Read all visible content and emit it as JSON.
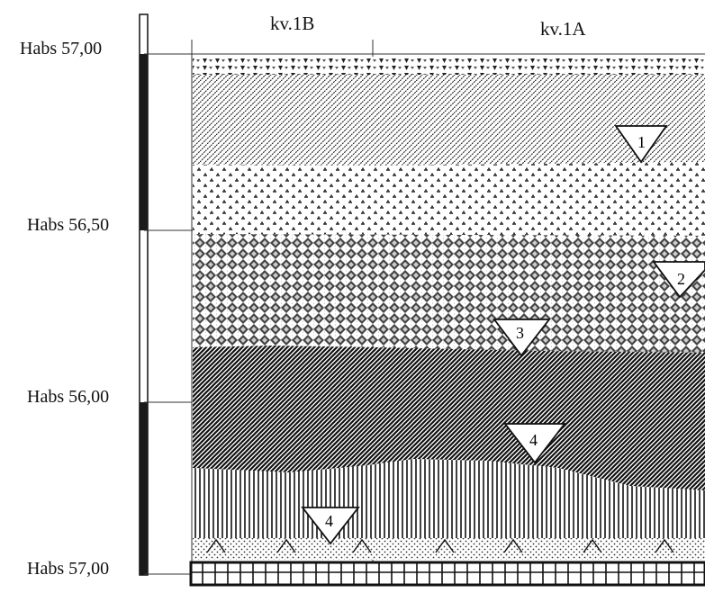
{
  "columns": [
    {
      "id": "kv1b",
      "label": "kv.1B"
    },
    {
      "id": "kv1a",
      "label": "kv.1A"
    }
  ],
  "elevations": [
    {
      "label": "Habs 57,00"
    },
    {
      "label": "Habs 56,50"
    },
    {
      "label": "Habs 56,00"
    },
    {
      "label": "Habs 57,00"
    }
  ],
  "layer_markers": [
    {
      "number": "1"
    },
    {
      "number": "2"
    },
    {
      "number": "3"
    },
    {
      "number": "4"
    },
    {
      "number": "4"
    }
  ]
}
